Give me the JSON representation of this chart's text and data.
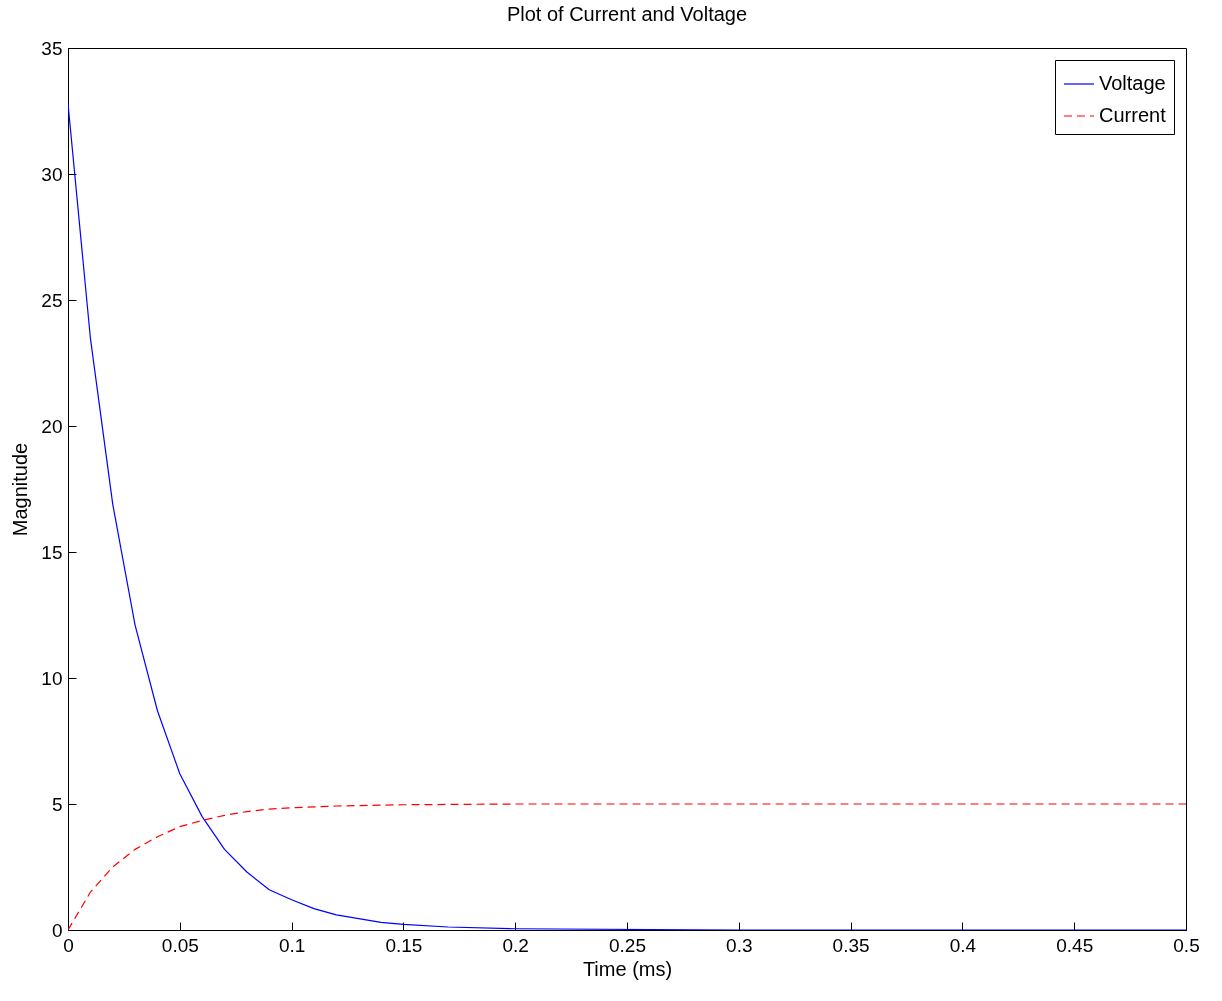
{
  "chart_data": {
    "type": "line",
    "title": "Plot of Current and Voltage",
    "xlabel": "Time (ms)",
    "ylabel": "Magnitude",
    "xlim": [
      0,
      0.5
    ],
    "xticks": [
      0,
      0.05,
      0.1,
      0.15,
      0.2,
      0.25,
      0.3,
      0.35,
      0.4,
      0.45,
      0.5
    ],
    "ylim": [
      0,
      35
    ],
    "yticks": [
      0,
      5,
      10,
      15,
      20,
      25,
      30,
      35
    ],
    "grid": false,
    "legend": "top right",
    "marker": "none",
    "series": [
      {
        "name": "Voltage",
        "color": "#0000ff",
        "line_style": "solid",
        "x": [
          0,
          0.01,
          0.02,
          0.03,
          0.04,
          0.05,
          0.06,
          0.07,
          0.08,
          0.09,
          0.1,
          0.11,
          0.12,
          0.13,
          0.14,
          0.15,
          0.17,
          0.2,
          0.3,
          0.4,
          0.5
        ],
        "values": [
          32.8,
          23.5,
          16.9,
          12.1,
          8.7,
          6.2,
          4.5,
          3.2,
          2.3,
          1.6,
          1.2,
          0.85,
          0.6,
          0.45,
          0.3,
          0.22,
          0.12,
          0.05,
          0,
          0,
          0
        ]
      },
      {
        "name": "Current",
        "color": "#ff0000",
        "line_style": "dashed",
        "x": [
          0,
          0.01,
          0.02,
          0.03,
          0.04,
          0.05,
          0.06,
          0.07,
          0.08,
          0.09,
          0.1,
          0.12,
          0.15,
          0.2,
          0.3,
          0.4,
          0.5
        ],
        "values": [
          0,
          1.5,
          2.5,
          3.2,
          3.7,
          4.1,
          4.35,
          4.55,
          4.7,
          4.8,
          4.85,
          4.92,
          4.97,
          5,
          5,
          5,
          5
        ]
      }
    ]
  }
}
